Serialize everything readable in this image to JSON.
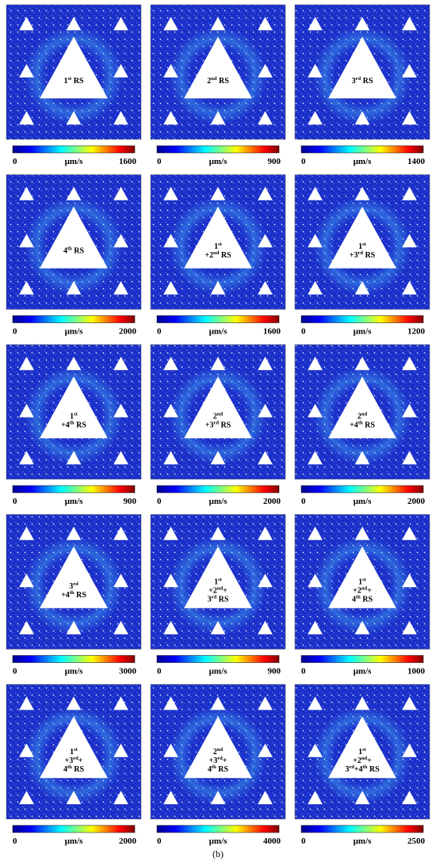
{
  "unit": "µm/s",
  "colorbar_min": 0,
  "caption": "(b)",
  "panels": [
    {
      "label": [
        [
          {
            "t": "1"
          },
          {
            "s": "st"
          },
          {
            "t": " RS"
          }
        ]
      ],
      "max": 1600
    },
    {
      "label": [
        [
          {
            "t": "2"
          },
          {
            "s": "nd"
          },
          {
            "t": " RS"
          }
        ]
      ],
      "max": 900
    },
    {
      "label": [
        [
          {
            "t": "3"
          },
          {
            "s": "rd"
          },
          {
            "t": " RS"
          }
        ]
      ],
      "max": 1400
    },
    {
      "label": [
        [
          {
            "t": "4"
          },
          {
            "s": "th"
          },
          {
            "t": " RS"
          }
        ]
      ],
      "max": 2000
    },
    {
      "label": [
        [
          {
            "t": "1"
          },
          {
            "s": "st"
          }
        ],
        [
          {
            "t": "+2"
          },
          {
            "s": "nd"
          },
          {
            "t": " RS"
          }
        ]
      ],
      "max": 1600
    },
    {
      "label": [
        [
          {
            "t": "1"
          },
          {
            "s": "st"
          }
        ],
        [
          {
            "t": "+3"
          },
          {
            "s": "rd"
          },
          {
            "t": " RS"
          }
        ]
      ],
      "max": 1200
    },
    {
      "label": [
        [
          {
            "t": "1"
          },
          {
            "s": "st"
          }
        ],
        [
          {
            "t": "+4"
          },
          {
            "s": "th"
          },
          {
            "t": " RS"
          }
        ]
      ],
      "max": 900
    },
    {
      "label": [
        [
          {
            "t": "2"
          },
          {
            "s": "nd"
          }
        ],
        [
          {
            "t": "+3"
          },
          {
            "s": "rd"
          },
          {
            "t": " RS"
          }
        ]
      ],
      "max": 2000
    },
    {
      "label": [
        [
          {
            "t": "2"
          },
          {
            "s": "nd"
          }
        ],
        [
          {
            "t": "+4"
          },
          {
            "s": "th"
          },
          {
            "t": " RS"
          }
        ]
      ],
      "max": 2000
    },
    {
      "label": [
        [
          {
            "t": "3"
          },
          {
            "s": "rd"
          }
        ],
        [
          {
            "t": "+4"
          },
          {
            "s": "th"
          },
          {
            "t": " RS"
          }
        ]
      ],
      "max": 3000
    },
    {
      "label": [
        [
          {
            "t": "1"
          },
          {
            "s": "st"
          }
        ],
        [
          {
            "t": "+2"
          },
          {
            "s": "nd"
          },
          {
            "t": "+"
          }
        ],
        [
          {
            "t": "3"
          },
          {
            "s": "rd"
          },
          {
            "t": " RS"
          }
        ]
      ],
      "max": 900
    },
    {
      "label": [
        [
          {
            "t": "1"
          },
          {
            "s": "st"
          }
        ],
        [
          {
            "t": "+2"
          },
          {
            "s": "nd"
          },
          {
            "t": "+"
          }
        ],
        [
          {
            "t": "4"
          },
          {
            "s": "th"
          },
          {
            "t": " RS"
          }
        ]
      ],
      "max": 1000
    },
    {
      "label": [
        [
          {
            "t": "1"
          },
          {
            "s": "st"
          }
        ],
        [
          {
            "t": "+3"
          },
          {
            "s": "rd"
          },
          {
            "t": "+"
          }
        ],
        [
          {
            "t": "4"
          },
          {
            "s": "th"
          },
          {
            "t": " RS"
          }
        ]
      ],
      "max": 2000
    },
    {
      "label": [
        [
          {
            "t": "2"
          },
          {
            "s": "nd"
          }
        ],
        [
          {
            "t": "+3"
          },
          {
            "s": "rd"
          },
          {
            "t": "+"
          }
        ],
        [
          {
            "t": "4"
          },
          {
            "s": "th"
          },
          {
            "t": " RS"
          }
        ]
      ],
      "max": 4000
    },
    {
      "label": [
        [
          {
            "t": "1"
          },
          {
            "s": "st"
          }
        ],
        [
          {
            "t": "+2"
          },
          {
            "s": "nd"
          },
          {
            "t": "+"
          }
        ],
        [
          {
            "t": "3"
          },
          {
            "s": "rd"
          },
          {
            "t": "+4"
          },
          {
            "s": "th"
          },
          {
            "t": " RS"
          }
        ]
      ],
      "max": 2500
    }
  ]
}
